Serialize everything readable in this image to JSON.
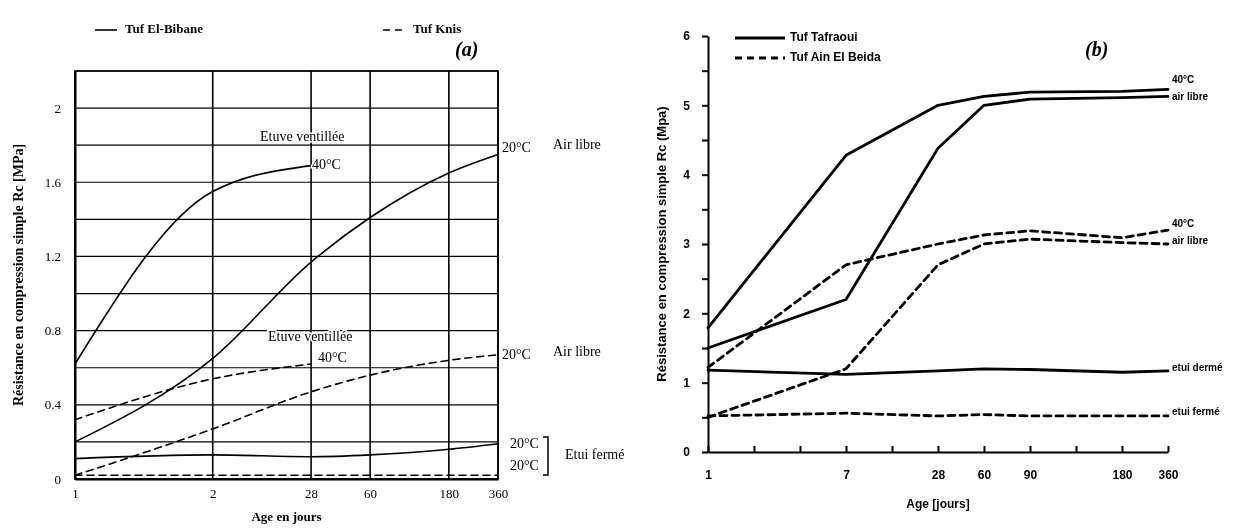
{
  "chart_data": [
    {
      "type": "line",
      "title": "(a)",
      "xlabel": "Age en jours",
      "ylabel": "Résistance en compression simple Rc [MPa]",
      "categories": [
        "1",
        null,
        null,
        null,
        null,
        null,
        null,
        null,
        null,
        null,
        null,
        null,
        null,
        null,
        "2",
        null,
        null,
        null,
        null,
        null,
        null,
        null,
        null,
        null,
        "28",
        null,
        null,
        null,
        null,
        null,
        "60",
        null,
        null,
        null,
        null,
        null,
        null,
        null,
        "180",
        null,
        null,
        null,
        null,
        "360"
      ],
      "ylim": [
        0,
        2.2
      ],
      "yticks": [
        0,
        {
          "value": 0.2,
          "label": null
        },
        0.4,
        {
          "value": 0.6,
          "label": null
        },
        0.8,
        {
          "value": 1,
          "label": null
        },
        1.2,
        {
          "value": 1.4,
          "label": null
        },
        1.6,
        {
          "value": 1.8,
          "label": null
        },
        2,
        {
          "value": 2.2,
          "label": null
        }
      ],
      "grid": true,
      "legend": "top",
      "marker": "none",
      "series": [
        {
          "name": "Tuf El-Bibane",
          "color": "#000000",
          "line_style": "solid",
          "x": [
            "1",
            "2",
            "28"
          ],
          "values": [
            0.62,
            1.55,
            1.69
          ]
        },
        {
          "name": "Tuf Knis",
          "color": "#000000",
          "line_style": "dashed",
          "x": [
            "1",
            "2",
            "28"
          ],
          "values": [
            0.32,
            0.54,
            0.62
          ]
        },
        {
          "color": "#000000",
          "line_style": "solid",
          "x": [
            "1",
            "2",
            "28",
            "60",
            "180",
            "360"
          ],
          "values": [
            0.2,
            0.65,
            1.17,
            1.41,
            1.65,
            1.75
          ]
        },
        {
          "color": "#000000",
          "line_style": "dashed",
          "x": [
            "1",
            "2",
            "28",
            "60",
            "180",
            "360"
          ],
          "values": [
            0.02,
            0.27,
            0.47,
            0.56,
            0.64,
            0.67
          ]
        },
        {
          "color": "#000000",
          "line_style": "solid",
          "x": [
            "1",
            "2",
            "28",
            "60",
            "180",
            "360"
          ],
          "values": [
            0.11,
            0.13,
            0.12,
            0.13,
            0.16,
            0.19
          ]
        },
        {
          "color": "#000000",
          "line_style": "dashed",
          "x": [
            "1",
            "360"
          ],
          "values": [
            0.02,
            0.02
          ]
        }
      ],
      "annotations": [
        "Etuve ventillée",
        "40°C",
        "20°C",
        "Air libre",
        "Etuve ventillée",
        "40°C",
        "20°C",
        "Air libre",
        "20°C",
        "20°C",
        "Etui fermé"
      ]
    },
    {
      "type": "line",
      "title": "(b)",
      "xlabel": "Age [jours]",
      "ylabel": "Résistance en compression simple Rc (Mpa)",
      "categories": [
        "1",
        null,
        null,
        "7",
        null,
        "28",
        "60",
        "90",
        null,
        "180",
        "360"
      ],
      "ylim": [
        0,
        6
      ],
      "yticks": [
        0,
        {
          "value": 0.5,
          "label": null
        },
        1,
        {
          "value": 1.5,
          "label": null
        },
        2,
        {
          "value": 2.5,
          "label": null
        },
        3,
        {
          "value": 3.5,
          "label": null
        },
        4,
        {
          "value": 4.5,
          "label": null
        },
        5,
        {
          "value": 5.5,
          "label": null
        },
        6
      ],
      "legend": "top left",
      "marker": "none",
      "series": [
        {
          "name": "Tuf Tafraoui",
          "color": "#000000",
          "line_style": "solid",
          "x": [
            "1",
            "7",
            "28",
            "60",
            "90",
            "180",
            "360"
          ],
          "values": [
            1.79,
            4.28,
            5.0,
            5.13,
            5.19,
            5.2,
            5.23
          ]
        },
        {
          "name": "Tuf Ain El Beida",
          "color": "#000000",
          "line_style": "dashed",
          "x": [
            "1",
            "7",
            "28",
            "60",
            "90",
            "180",
            "360"
          ],
          "values": [
            1.22,
            2.7,
            3.0,
            3.13,
            3.19,
            3.09,
            3.2
          ]
        },
        {
          "color": "#000000",
          "line_style": "solid",
          "x": [
            "1",
            "7",
            "28",
            "60",
            "90",
            "180",
            "360"
          ],
          "values": [
            1.5,
            2.2,
            4.38,
            5.0,
            5.09,
            5.11,
            5.13
          ]
        },
        {
          "color": "#000000",
          "line_style": "dashed",
          "x": [
            "1",
            "7",
            "28",
            "60",
            "90",
            "180",
            "360"
          ],
          "values": [
            0.5,
            1.2,
            2.7,
            3.0,
            3.07,
            3.02,
            3.0
          ]
        },
        {
          "color": "#000000",
          "line_style": "solid",
          "x": [
            "1",
            "7",
            "28",
            "60",
            "90",
            "180",
            "360"
          ],
          "values": [
            1.18,
            1.12,
            1.17,
            1.2,
            1.19,
            1.15,
            1.17
          ]
        },
        {
          "color": "#000000",
          "line_style": "dashed",
          "x": [
            "1",
            "7",
            "28",
            "60",
            "90",
            "180",
            "360"
          ],
          "values": [
            0.52,
            0.56,
            0.52,
            0.54,
            0.52,
            0.52,
            0.52
          ]
        }
      ],
      "annotations": [
        "40°C",
        "air libre",
        "40°C",
        "air libre",
        "etui dermé",
        "etui fermé"
      ]
    }
  ]
}
